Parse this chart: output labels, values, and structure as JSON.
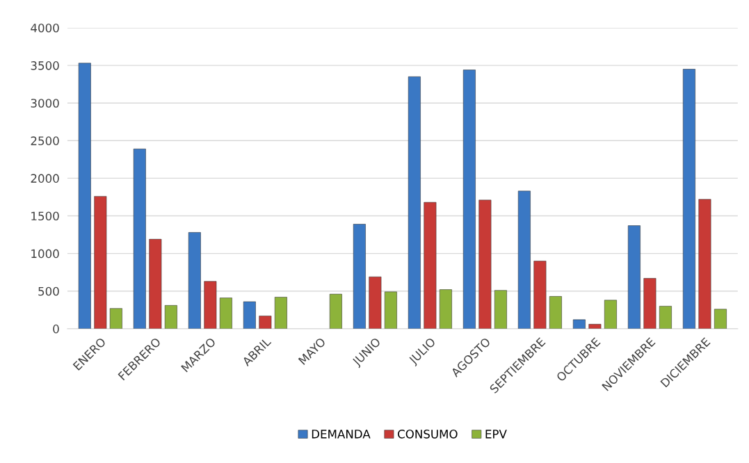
{
  "chart_data": {
    "type": "bar",
    "categories": [
      "ENERO",
      "FEBRERO",
      "MARZO",
      "ABRIL",
      "MAYO",
      "JUNIO",
      "JULIO",
      "AGOSTO",
      "SEPTIEMBRE",
      "OCTUBRE",
      "NOVIEMBRE",
      "DICIEMBRE"
    ],
    "series": [
      {
        "name": "DEMANDA",
        "color": "#3a78c4",
        "values": [
          3530,
          2390,
          1280,
          360,
          null,
          1390,
          3350,
          3440,
          1830,
          120,
          1370,
          3450
        ]
      },
      {
        "name": "CONSUMO",
        "color": "#c83a36",
        "values": [
          1760,
          1190,
          630,
          170,
          null,
          690,
          1680,
          1710,
          900,
          60,
          670,
          1720
        ]
      },
      {
        "name": "EPV",
        "color": "#8db33a",
        "values": [
          270,
          310,
          410,
          420,
          460,
          490,
          520,
          510,
          430,
          380,
          300,
          260
        ]
      }
    ],
    "ylim": [
      0,
      4000
    ],
    "yticks": [
      0,
      500,
      1000,
      1500,
      2000,
      2500,
      3000,
      3500,
      4000
    ],
    "grid": "y",
    "legend": "bottom"
  }
}
